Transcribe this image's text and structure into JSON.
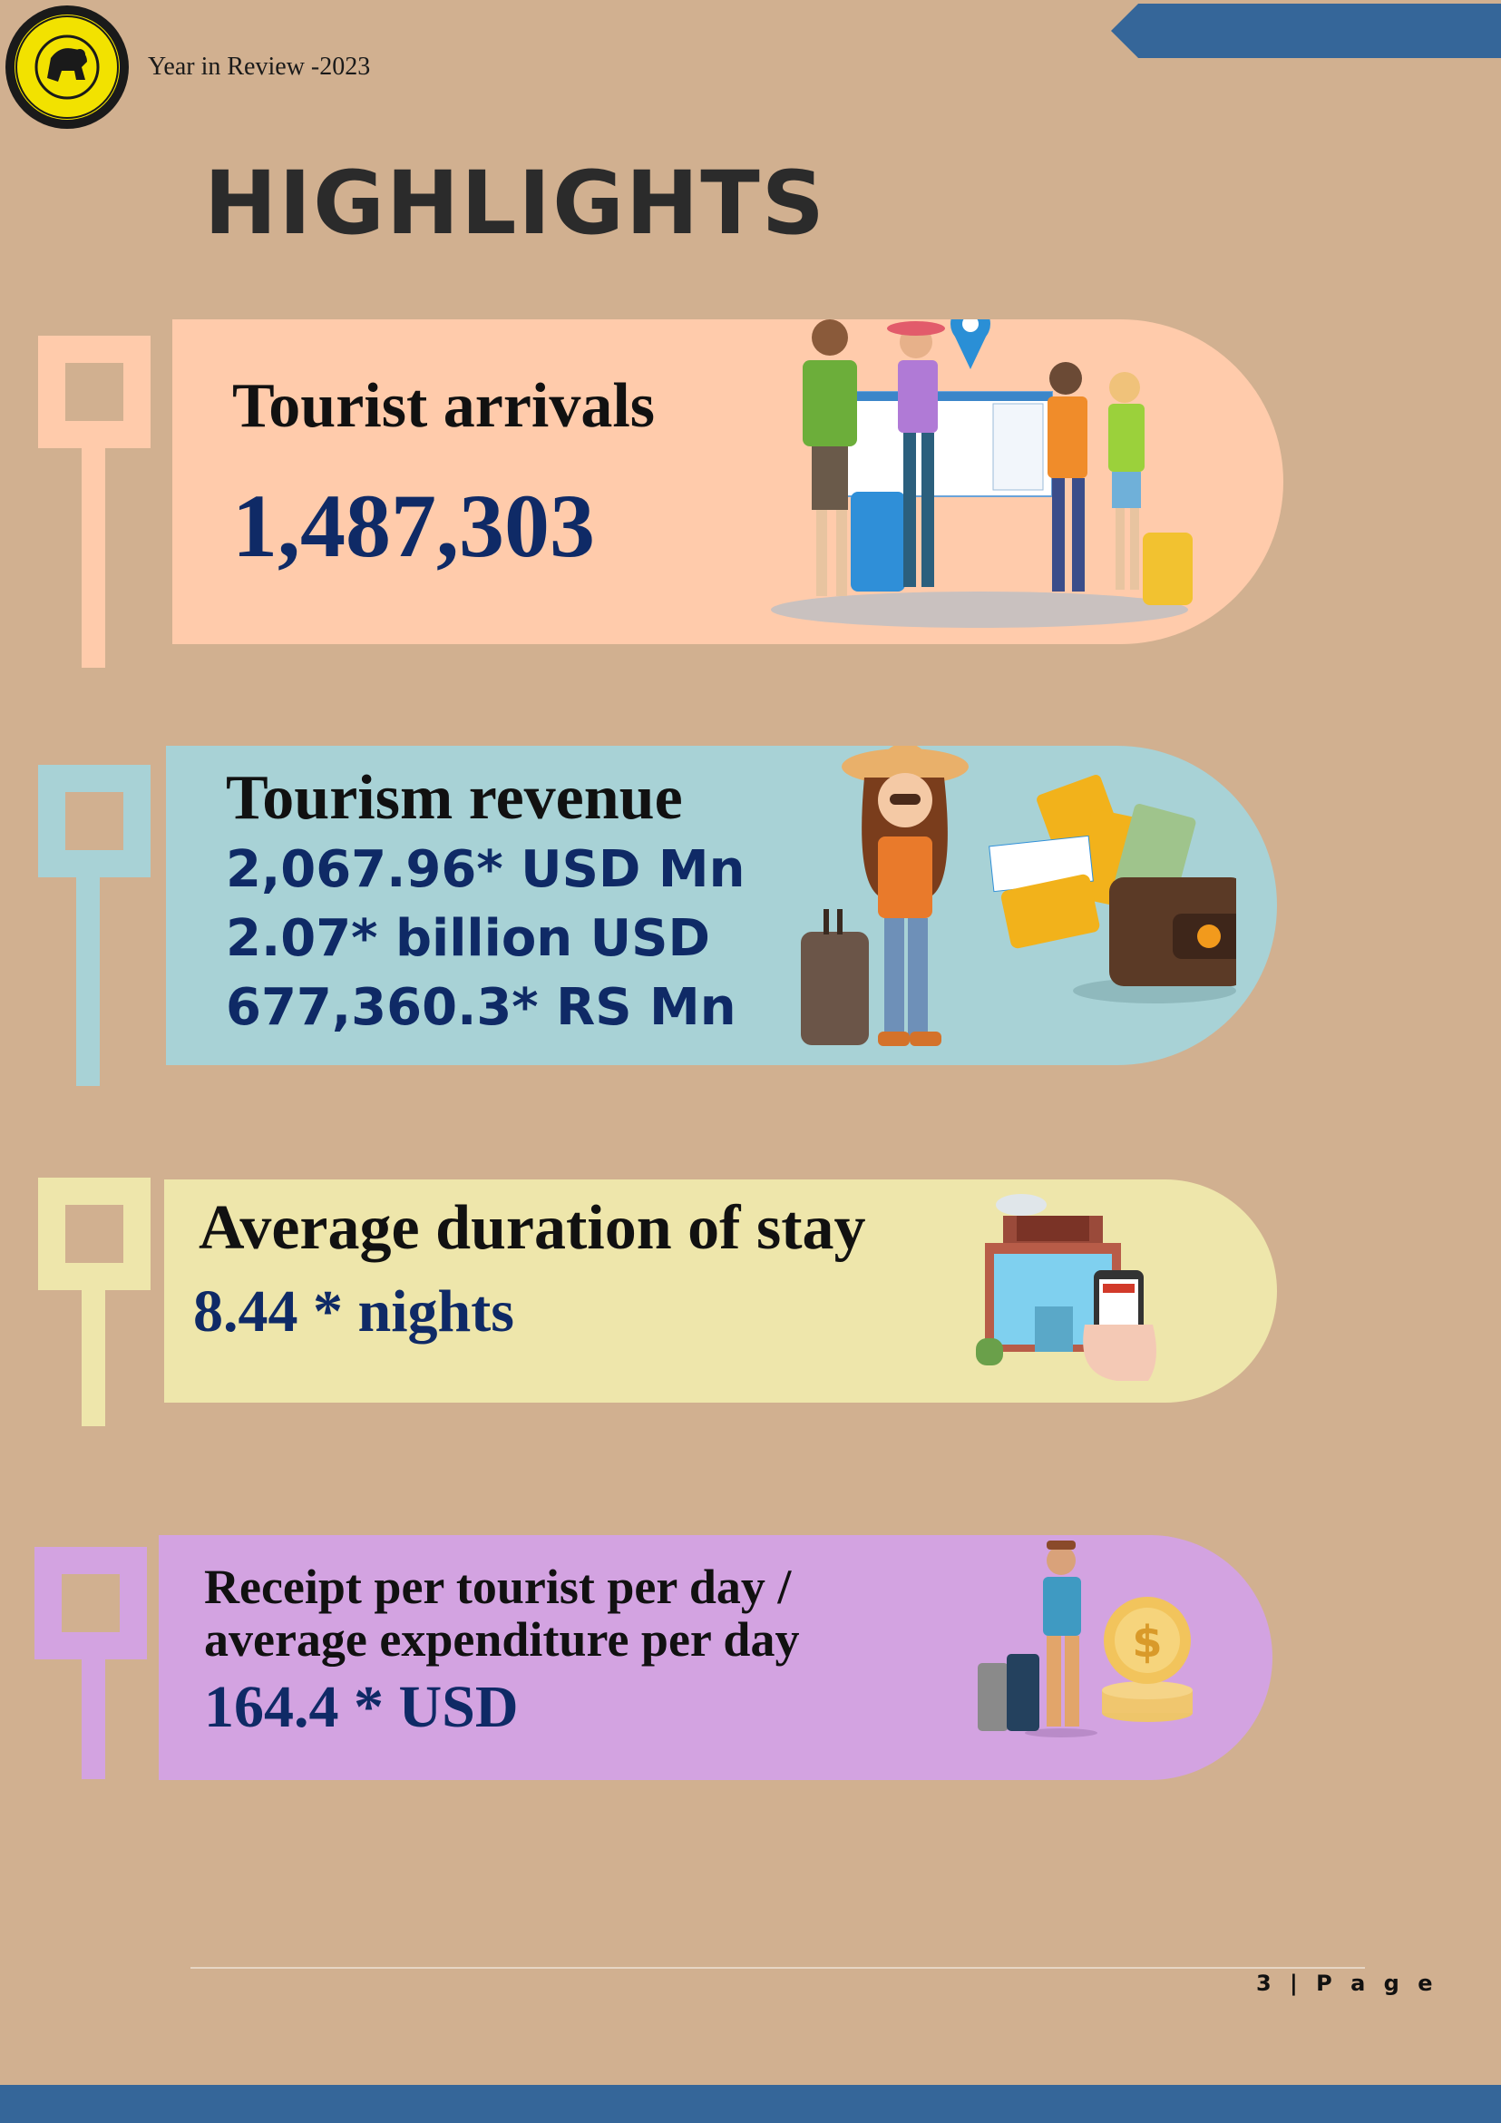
{
  "header": {
    "text": "Year in Review -2023"
  },
  "title": "HIGHLIGHTS",
  "cards": [
    {
      "label": "Tourist arrivals",
      "values": [
        "1,487,303"
      ]
    },
    {
      "label": "Tourism revenue",
      "values": [
        "2,067.96* USD Mn",
        "2.07* billion USD",
        "677,360.3* RS Mn"
      ]
    },
    {
      "label": "Average duration of stay",
      "values": [
        "8.44 * nights"
      ]
    },
    {
      "label_lines": [
        "Receipt per tourist per day /",
        "average expenditure per day"
      ],
      "values": [
        "164.4 * USD"
      ]
    }
  ],
  "footer": {
    "page": "3 | P a g e"
  },
  "colors": {
    "background": "#d1b090",
    "accent_blue": "#356699",
    "card_arrivals": "#ffcbab",
    "card_revenue": "#a8d2d6",
    "card_stay": "#eee6ab",
    "card_receipt": "#d3a3e1",
    "value_text": "#0f2a66"
  },
  "icons": [
    "emblem-logo",
    "travelers-illustration",
    "traveler-with-wallet-illustration",
    "hotel-phone-illustration",
    "traveler-coins-illustration"
  ]
}
